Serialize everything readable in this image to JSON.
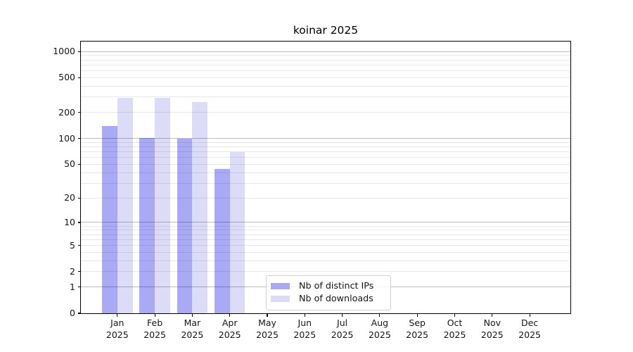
{
  "title": "koinar 2025",
  "chart_data": {
    "type": "bar",
    "title": "koinar 2025",
    "categories": [
      "Jan",
      "Feb",
      "Mar",
      "Apr",
      "May",
      "Jun",
      "Jul",
      "Aug",
      "Sep",
      "Oct",
      "Nov",
      "Dec"
    ],
    "year": "2025",
    "series": [
      {
        "name": "Nb of distinct IPs",
        "color": "#a9a9f6",
        "values": [
          138,
          102,
          100,
          44,
          0,
          0,
          0,
          0,
          0,
          0,
          0,
          0
        ]
      },
      {
        "name": "Nb of downloads",
        "color": "#dcdcf9",
        "values": [
          295,
          295,
          260,
          70,
          0,
          0,
          0,
          0,
          0,
          0,
          0,
          0
        ]
      }
    ],
    "y_ticks": [
      0,
      1,
      2,
      5,
      10,
      20,
      50,
      100,
      200,
      500,
      1000
    ],
    "y_scale": "log1p",
    "ylim": [
      0,
      1300
    ],
    "grid": {
      "major_lines": [
        1,
        10,
        100,
        1000
      ],
      "minor_subs": [
        2,
        3,
        4,
        5,
        6,
        7,
        8,
        9
      ]
    },
    "legend_position": "lower center",
    "xlabel": "",
    "ylabel": ""
  },
  "colors": {
    "background": "#ffffff",
    "spine": "#000000",
    "grid_major": "#bdbdbd",
    "grid_minor": "#e8e8e8",
    "text": "#141414"
  }
}
